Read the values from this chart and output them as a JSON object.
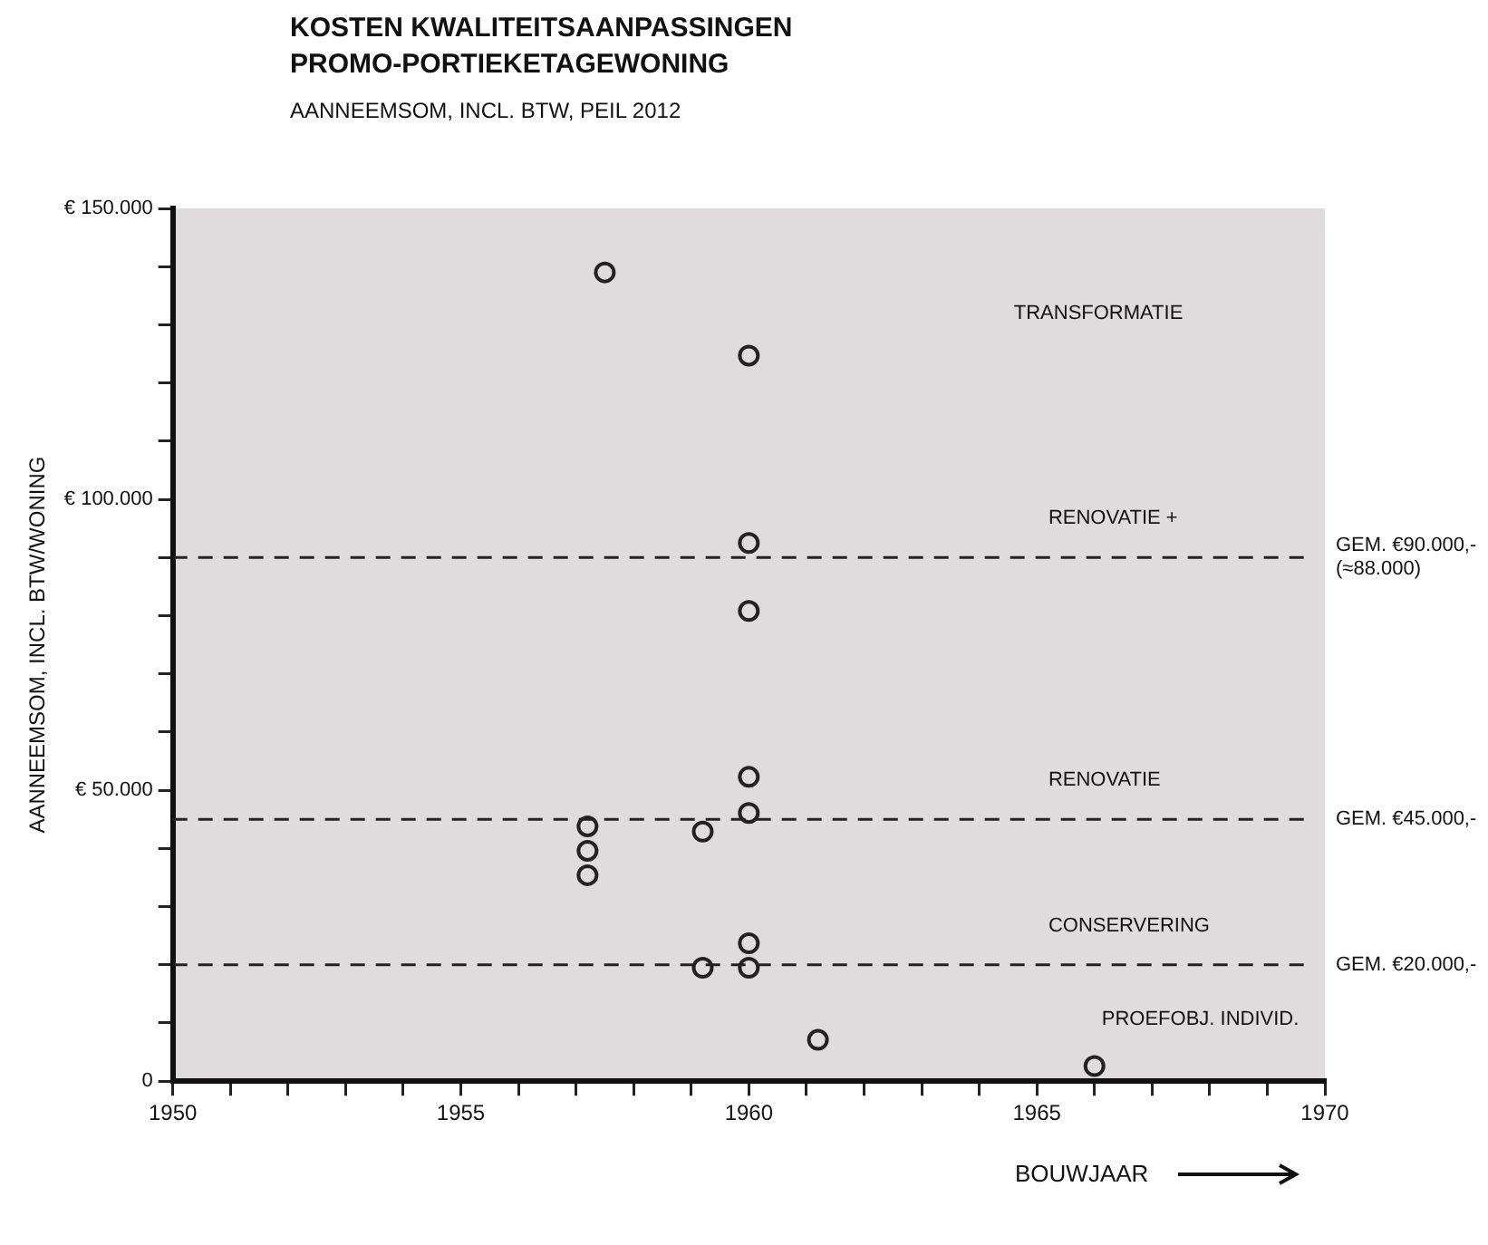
{
  "chart_data": {
    "type": "scatter",
    "title": "KOSTEN KWALITEITSAANPASSINGEN PROMO-PORTIEKETAGEWONING",
    "subtitle": "AANNEEMSOM, INCL. BTW, PEIL 2012",
    "xlabel": "BOUWJAAR",
    "ylabel": "AANNEEMSOM, INCL. BTW/WONING",
    "series": [
      {
        "color": "#222222",
        "x": [
          1957.5,
          1960,
          1960,
          1960,
          1960,
          1960,
          1960,
          1960,
          1957.2,
          1957.2,
          1957.2,
          1959.2,
          1959.2,
          1961.2,
          1966
        ],
        "values": [
          139000,
          124700,
          92500,
          80800,
          52300,
          46100,
          23700,
          19500,
          43800,
          39600,
          35400,
          42900,
          19500,
          7100,
          2600
        ]
      }
    ],
    "marker": "circle",
    "legend": false,
    "grid": false,
    "xlim": [
      1950,
      1970
    ],
    "ylim": [
      0,
      150000
    ],
    "xticks": [
      1950,
      {
        "value": 1951,
        "label": null
      },
      {
        "value": 1952,
        "label": null
      },
      {
        "value": 1953,
        "label": null
      },
      {
        "value": 1954,
        "label": null
      },
      1955,
      {
        "value": 1956,
        "label": null
      },
      {
        "value": 1957,
        "label": null
      },
      {
        "value": 1958,
        "label": null
      },
      {
        "value": 1959,
        "label": null
      },
      1960,
      {
        "value": 1961,
        "label": null
      },
      {
        "value": 1962,
        "label": null
      },
      {
        "value": 1963,
        "label": null
      },
      {
        "value": 1964,
        "label": null
      },
      1965,
      {
        "value": 1966,
        "label": null
      },
      {
        "value": 1967,
        "label": null
      },
      {
        "value": 1968,
        "label": null
      },
      {
        "value": 1969,
        "label": null
      },
      1970
    ],
    "yticks": [
      0,
      {
        "value": 10000,
        "label": null
      },
      {
        "value": 20000,
        "label": null
      },
      {
        "value": 30000,
        "label": null
      },
      {
        "value": 40000,
        "label": null
      },
      {
        "value": 50000,
        "label": "€ 50.000"
      },
      {
        "value": 60000,
        "label": null
      },
      {
        "value": 70000,
        "label": null
      },
      {
        "value": 80000,
        "label": null
      },
      {
        "value": 90000,
        "label": null
      },
      {
        "value": 100000,
        "label": "€ 100.000"
      },
      {
        "value": 110000,
        "label": null
      },
      {
        "value": 120000,
        "label": null
      },
      {
        "value": 130000,
        "label": null
      },
      {
        "value": 140000,
        "label": null
      },
      {
        "value": 150000,
        "label": "€ 150.000"
      }
    ],
    "ref_lines": [
      {
        "axis": "y",
        "value": 90000,
        "label": "RENOVATIE +",
        "line_style": "dashed"
      },
      {
        "axis": "y",
        "value": 45000,
        "label": "RENOVATIE",
        "line_style": "dashed"
      },
      {
        "axis": "y",
        "value": 20000,
        "label": "CONSERVERING",
        "line_style": "dashed"
      }
    ],
    "annotations": [
      "GEM. €90.000,- (≈88.000)",
      "GEM. €45.000,-",
      "GEM. €20.000,-",
      "TRANSFORMATIE",
      {
        "text": "PROEFOBJ. INDIVID.",
        "x": 1966,
        "y": 2600
      }
    ]
  }
}
